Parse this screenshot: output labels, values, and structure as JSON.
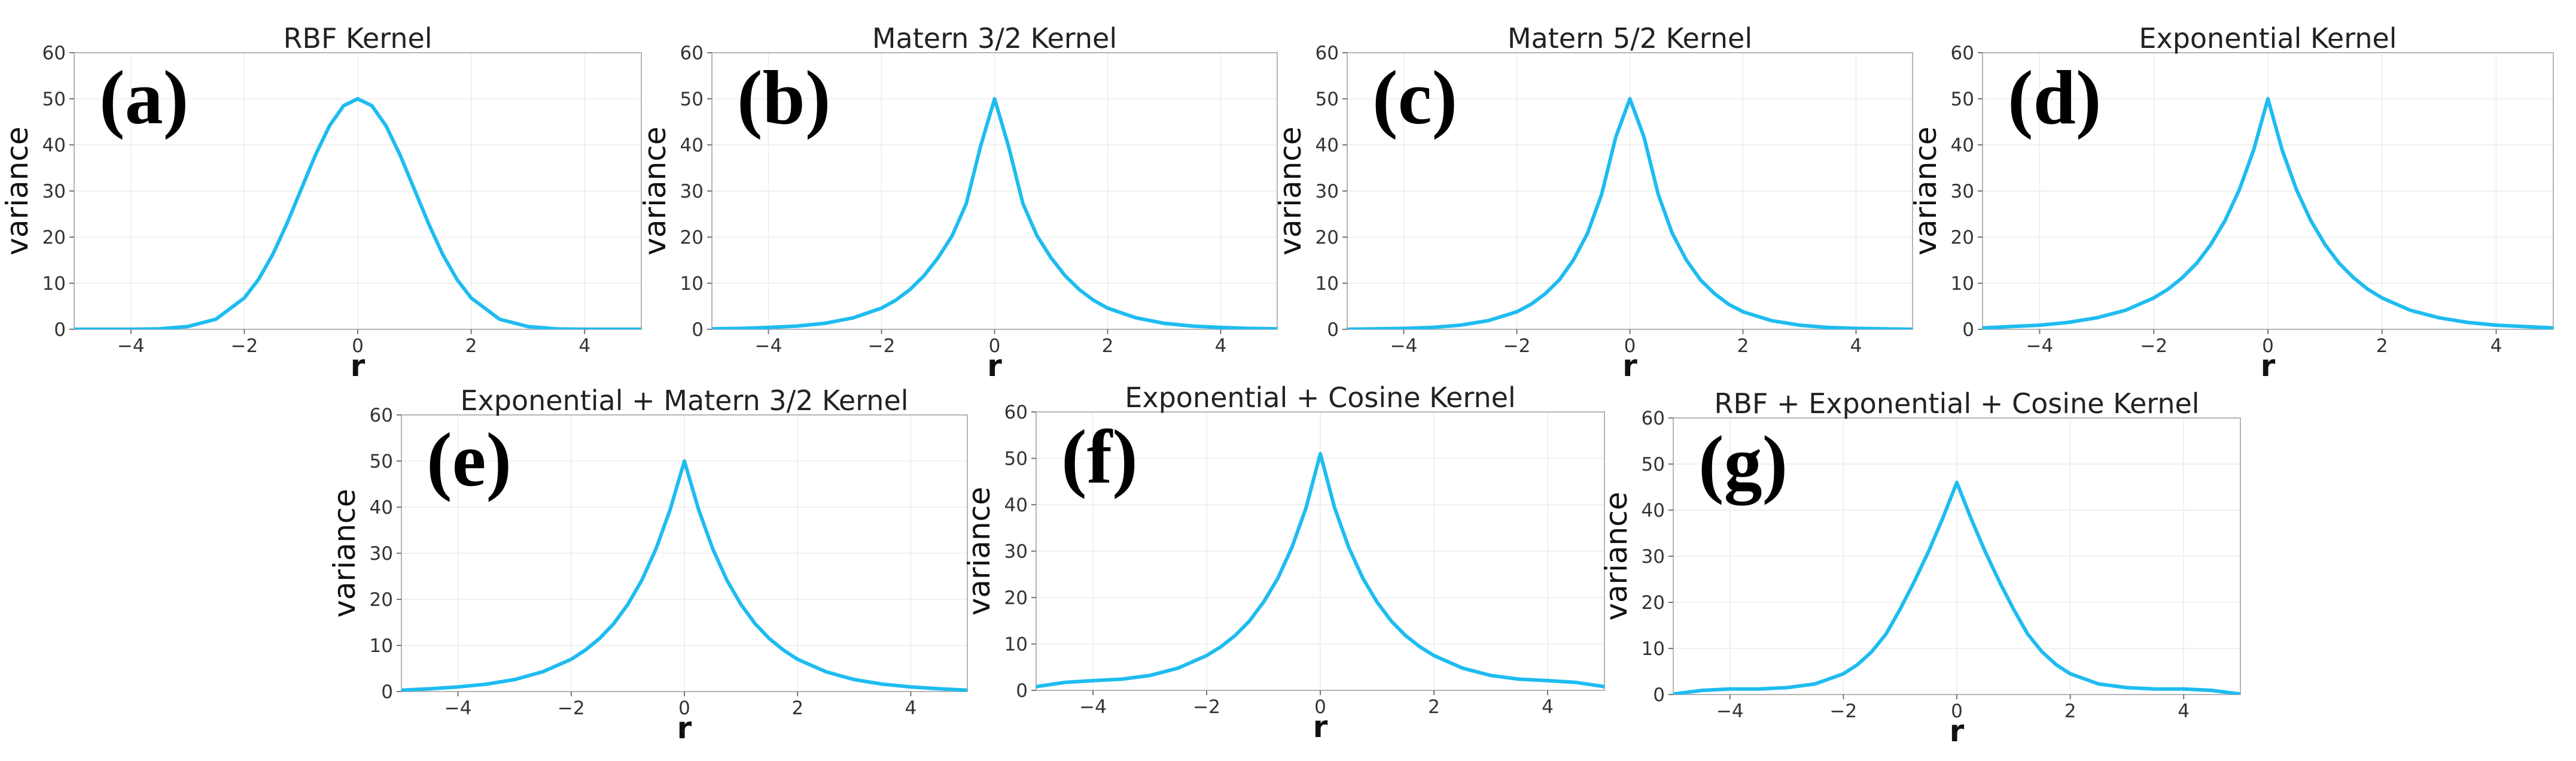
{
  "chart_data": [
    {
      "type": "line",
      "panel_label": "(a)",
      "title": "RBF Kernel",
      "xlabel": "r",
      "ylabel": "variance",
      "xlim": [
        -5,
        5
      ],
      "ylim": [
        0,
        60
      ],
      "xticks": [
        -4,
        -2,
        0,
        2,
        4
      ],
      "xtick_labels": [
        "−4",
        "−2",
        "0",
        "2",
        "4"
      ],
      "yticks": [
        0,
        10,
        20,
        30,
        40,
        50,
        60
      ],
      "ytick_labels": [
        "0",
        "10",
        "20",
        "30",
        "40",
        "50",
        "60"
      ],
      "grid": true,
      "series": [
        {
          "name": "RBF",
          "x": [
            -5,
            -4.5,
            -4,
            -3.5,
            -3,
            -2.5,
            -2,
            -1.75,
            -1.5,
            -1.25,
            -1,
            -0.75,
            -0.5,
            -0.25,
            0,
            0.25,
            0.5,
            0.75,
            1,
            1.25,
            1.5,
            1.75,
            2,
            2.5,
            3,
            3.5,
            4,
            4.5,
            5
          ],
          "y": [
            0,
            0,
            0,
            0.1,
            0.6,
            2.2,
            6.8,
            10.8,
            16.2,
            22.9,
            30.3,
            37.7,
            44.1,
            48.5,
            50,
            48.5,
            44.1,
            37.7,
            30.3,
            22.9,
            16.2,
            10.8,
            6.8,
            2.2,
            0.6,
            0.1,
            0,
            0,
            0
          ]
        }
      ]
    },
    {
      "type": "line",
      "panel_label": "(b)",
      "title": "Matern 3/2 Kernel",
      "xlabel": "r",
      "ylabel": "variance",
      "xlim": [
        -5,
        5
      ],
      "ylim": [
        0,
        60
      ],
      "xticks": [
        -4,
        -2,
        0,
        2,
        4
      ],
      "xtick_labels": [
        "−4",
        "−2",
        "0",
        "2",
        "4"
      ],
      "yticks": [
        0,
        10,
        20,
        30,
        40,
        50,
        60
      ],
      "ytick_labels": [
        "0",
        "10",
        "20",
        "30",
        "40",
        "50",
        "60"
      ],
      "grid": true,
      "series": [
        {
          "name": "Matern 3/2",
          "x": [
            -5,
            -4.5,
            -4,
            -3.5,
            -3,
            -2.5,
            -2,
            -1.75,
            -1.5,
            -1.25,
            -1,
            -0.75,
            -0.5,
            -0.25,
            0,
            0.25,
            0.5,
            0.75,
            1,
            1.25,
            1.5,
            1.75,
            2,
            2.5,
            3,
            3.5,
            4,
            4.5,
            5
          ],
          "y": [
            0.1,
            0.2,
            0.4,
            0.7,
            1.3,
            2.5,
            4.6,
            6.3,
            8.6,
            11.6,
            15.5,
            20.3,
            27.3,
            39.6,
            50,
            39.6,
            27.3,
            20.3,
            15.5,
            11.6,
            8.6,
            6.3,
            4.6,
            2.5,
            1.3,
            0.7,
            0.4,
            0.2,
            0.1
          ]
        }
      ]
    },
    {
      "type": "line",
      "panel_label": "(c)",
      "title": "Matern 5/2 Kernel",
      "xlabel": "r",
      "ylabel": "variance",
      "xlim": [
        -5,
        5
      ],
      "ylim": [
        0,
        60
      ],
      "xticks": [
        -4,
        -2,
        0,
        2,
        4
      ],
      "xtick_labels": [
        "−4",
        "−2",
        "0",
        "2",
        "4"
      ],
      "yticks": [
        0,
        10,
        20,
        30,
        40,
        50,
        60
      ],
      "ytick_labels": [
        "0",
        "10",
        "20",
        "30",
        "40",
        "50",
        "60"
      ],
      "grid": true,
      "series": [
        {
          "name": "Matern 5/2",
          "x": [
            -5,
            -4.5,
            -4,
            -3.5,
            -3,
            -2.5,
            -2,
            -1.75,
            -1.5,
            -1.25,
            -1,
            -0.75,
            -0.5,
            -0.25,
            0,
            0.25,
            0.5,
            0.75,
            1,
            1.25,
            1.5,
            1.75,
            2,
            2.5,
            3,
            3.5,
            4,
            4.5,
            5
          ],
          "y": [
            0,
            0.1,
            0.2,
            0.4,
            0.9,
            1.9,
            3.8,
            5.4,
            7.7,
            10.7,
            15,
            20.8,
            29.3,
            41.7,
            50,
            41.7,
            29.3,
            20.8,
            15,
            10.7,
            7.7,
            5.4,
            3.8,
            1.9,
            0.9,
            0.4,
            0.2,
            0.1,
            0
          ]
        }
      ]
    },
    {
      "type": "line",
      "panel_label": "(d)",
      "title": "Exponential Kernel",
      "xlabel": "r",
      "ylabel": "variance",
      "xlim": [
        -5,
        5
      ],
      "ylim": [
        0,
        60
      ],
      "xticks": [
        -4,
        -2,
        0,
        2,
        4
      ],
      "xtick_labels": [
        "−4",
        "−2",
        "0",
        "2",
        "4"
      ],
      "yticks": [
        0,
        10,
        20,
        30,
        40,
        50,
        60
      ],
      "ytick_labels": [
        "0",
        "10",
        "20",
        "30",
        "40",
        "50",
        "60"
      ],
      "grid": true,
      "series": [
        {
          "name": "Exponential",
          "x": [
            -5,
            -4.5,
            -4,
            -3.5,
            -3,
            -2.5,
            -2,
            -1.75,
            -1.5,
            -1.25,
            -1,
            -0.75,
            -0.5,
            -0.25,
            0,
            0.25,
            0.5,
            0.75,
            1,
            1.25,
            1.5,
            1.75,
            2,
            2.5,
            3,
            3.5,
            4,
            4.5,
            5
          ],
          "y": [
            0.3,
            0.6,
            0.9,
            1.5,
            2.5,
            4.1,
            6.8,
            8.7,
            11.2,
            14.3,
            18.4,
            23.6,
            30.3,
            38.9,
            50,
            38.9,
            30.3,
            23.6,
            18.4,
            14.3,
            11.2,
            8.7,
            6.8,
            4.1,
            2.5,
            1.5,
            0.9,
            0.6,
            0.3
          ]
        }
      ]
    },
    {
      "type": "line",
      "panel_label": "(e)",
      "title": "Exponential + Matern 3/2 Kernel",
      "xlabel": "r",
      "ylabel": "variance",
      "xlim": [
        -5,
        5
      ],
      "ylim": [
        0,
        60
      ],
      "xticks": [
        -4,
        -2,
        0,
        2,
        4
      ],
      "xtick_labels": [
        "−4",
        "−2",
        "0",
        "2",
        "4"
      ],
      "yticks": [
        0,
        10,
        20,
        30,
        40,
        50,
        60
      ],
      "ytick_labels": [
        "0",
        "10",
        "20",
        "30",
        "40",
        "50",
        "60"
      ],
      "grid": true,
      "series": [
        {
          "name": "Exponential + Matern 3/2",
          "x": [
            -5,
            -4.5,
            -4,
            -3.5,
            -3,
            -2.5,
            -2,
            -1.75,
            -1.5,
            -1.25,
            -1,
            -0.75,
            -0.5,
            -0.25,
            0,
            0.25,
            0.5,
            0.75,
            1,
            1.25,
            1.5,
            1.75,
            2,
            2.5,
            3,
            3.5,
            4,
            4.5,
            5
          ],
          "y": [
            0.3,
            0.6,
            1,
            1.6,
            2.6,
            4.3,
            7,
            9,
            11.5,
            14.7,
            18.9,
            24.2,
            31,
            39.5,
            50,
            39.5,
            31,
            24.2,
            18.9,
            14.7,
            11.5,
            9,
            7,
            4.3,
            2.6,
            1.6,
            1,
            0.6,
            0.3
          ]
        }
      ]
    },
    {
      "type": "line",
      "panel_label": "(f)",
      "title": "Exponential + Cosine Kernel",
      "xlabel": "r",
      "ylabel": "variance",
      "xlim": [
        -5,
        5
      ],
      "ylim": [
        0,
        60
      ],
      "xticks": [
        -4,
        -2,
        0,
        2,
        4
      ],
      "xtick_labels": [
        "−4",
        "−2",
        "0",
        "2",
        "4"
      ],
      "yticks": [
        0,
        10,
        20,
        30,
        40,
        50,
        60
      ],
      "ytick_labels": [
        "0",
        "10",
        "20",
        "30",
        "40",
        "50",
        "60"
      ],
      "grid": true,
      "series": [
        {
          "name": "Exponential + Cosine",
          "x": [
            -5,
            -4.5,
            -4,
            -3.5,
            -3,
            -2.5,
            -2,
            -1.75,
            -1.5,
            -1.25,
            -1,
            -0.75,
            -0.5,
            -0.25,
            0,
            0.25,
            0.5,
            0.75,
            1,
            1.25,
            1.5,
            1.75,
            2,
            2.5,
            3,
            3.5,
            4,
            4.5,
            5
          ],
          "y": [
            0.8,
            1.7,
            2.1,
            2.4,
            3.2,
            4.8,
            7.5,
            9.4,
            11.8,
            14.9,
            19,
            24.1,
            30.8,
            39.4,
            51,
            39.4,
            30.8,
            24.1,
            19,
            14.9,
            11.8,
            9.4,
            7.5,
            4.8,
            3.2,
            2.4,
            2.1,
            1.7,
            0.8
          ]
        }
      ]
    },
    {
      "type": "line",
      "panel_label": "(g)",
      "title": "RBF + Exponential + Cosine Kernel",
      "xlabel": "r",
      "ylabel": "variance",
      "xlim": [
        -5,
        5
      ],
      "ylim": [
        0,
        60
      ],
      "xticks": [
        -4,
        -2,
        0,
        2,
        4
      ],
      "xtick_labels": [
        "−4",
        "−2",
        "0",
        "2",
        "4"
      ],
      "yticks": [
        0,
        10,
        20,
        30,
        40,
        50,
        60
      ],
      "ytick_labels": [
        "0",
        "10",
        "20",
        "30",
        "40",
        "50",
        "60"
      ],
      "grid": true,
      "series": [
        {
          "name": "RBF + Exponential + Cosine",
          "x": [
            -5,
            -4.5,
            -4,
            -3.5,
            -3,
            -2.5,
            -2,
            -1.75,
            -1.5,
            -1.25,
            -1,
            -0.75,
            -0.5,
            -0.25,
            0,
            0.25,
            0.5,
            0.75,
            1,
            1.25,
            1.5,
            1.75,
            2,
            2.5,
            3,
            3.5,
            4,
            4.5,
            5
          ],
          "y": [
            0.1,
            0.9,
            1.2,
            1.2,
            1.5,
            2.3,
            4.5,
            6.5,
            9.3,
            13.1,
            18.5,
            24.5,
            31,
            38.2,
            46,
            38.2,
            31,
            24.5,
            18.5,
            13.1,
            9.3,
            6.5,
            4.5,
            2.3,
            1.5,
            1.2,
            1.2,
            0.9,
            0.1
          ]
        }
      ]
    }
  ],
  "colors": {
    "curve": "#1ebcf0",
    "frame": "#b5b5b5",
    "grid": "#ececec",
    "text": "#222222"
  }
}
